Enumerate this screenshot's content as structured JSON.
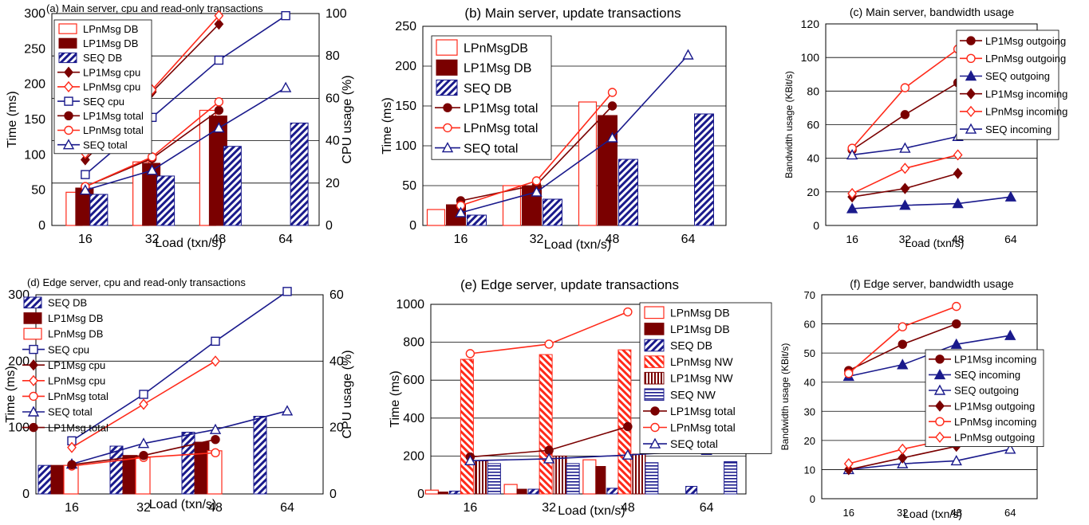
{
  "colors": {
    "red": "#ff2a1a",
    "dark_red": "#7a0000",
    "navy": "#1a1a8c",
    "grid": "#000000",
    "background": "#ffffff"
  },
  "chart_data": [
    {
      "title": "(a) Main server, cpu and read-only transactions",
      "type": "bar",
      "xlabel": "Load (txn/s)",
      "ylabel": "Time (ms)",
      "y2label": "CPU usage (%)",
      "categories": [
        "16",
        "32",
        "48",
        "64"
      ],
      "ylim": [
        0,
        300
      ],
      "yticks": [
        0,
        50,
        100,
        150,
        200,
        250,
        300
      ],
      "y2lim": [
        0,
        100
      ],
      "y2ticks": [
        0,
        20,
        40,
        60,
        80,
        100
      ],
      "grid": true,
      "legend_position": "top-left",
      "legend": [
        "LPnMsg DB",
        "LP1Msg DB",
        "SEQ DB",
        "LP1Msg cpu",
        "LPnMsg cpu",
        "SEQ cpu",
        "LP1Msg total",
        "LPnMsg total",
        "SEQ total"
      ],
      "series": [
        {
          "name": "LPnMsg DB",
          "kind": "bar",
          "style": "red-outline",
          "axis": "left",
          "values": [
            47,
            90,
            163,
            null
          ]
        },
        {
          "name": "LP1Msg DB",
          "kind": "bar",
          "style": "dark-red",
          "axis": "left",
          "values": [
            53,
            88,
            155,
            null
          ]
        },
        {
          "name": "SEQ DB",
          "kind": "bar",
          "style": "navy-hatch",
          "axis": "left",
          "values": [
            44,
            70,
            112,
            145
          ]
        },
        {
          "name": "LP1Msg cpu",
          "kind": "line",
          "marker": "filled-diamond",
          "color": "dark_red",
          "axis": "right",
          "values": [
            31,
            63,
            95,
            null
          ]
        },
        {
          "name": "LPnMsg cpu",
          "kind": "line",
          "marker": "open-diamond",
          "color": "red",
          "axis": "right",
          "values": [
            34,
            64,
            99,
            null
          ]
        },
        {
          "name": "SEQ cpu",
          "kind": "line",
          "marker": "open-square",
          "color": "navy",
          "axis": "right",
          "values": [
            24,
            51,
            78,
            99
          ]
        },
        {
          "name": "LP1Msg total",
          "kind": "line",
          "marker": "filled-circle",
          "color": "dark_red",
          "axis": "left",
          "values": [
            55,
            95,
            163,
            null
          ]
        },
        {
          "name": "LPnMsg total",
          "kind": "line",
          "marker": "open-circle",
          "color": "red",
          "axis": "left",
          "values": [
            55,
            97,
            175,
            null
          ]
        },
        {
          "name": "SEQ total",
          "kind": "line",
          "marker": "open-triangle",
          "color": "navy",
          "axis": "left",
          "values": [
            50,
            78,
            138,
            195
          ]
        }
      ]
    },
    {
      "title": "(b) Main server, update transactions",
      "type": "bar",
      "xlabel": "Load (txn/s)",
      "ylabel": "Time (ms)",
      "categories": [
        "16",
        "32",
        "48",
        "64"
      ],
      "ylim": [
        0,
        250
      ],
      "yticks": [
        0,
        50,
        100,
        150,
        200,
        250
      ],
      "grid": true,
      "legend_position": "top-left",
      "legend": [
        "LPnMsgDB",
        "LP1Msg DB",
        "SEQ DB",
        "LP1Msg total",
        "LPnMsg total",
        "SEQ total"
      ],
      "series": [
        {
          "name": "LPnMsgDB",
          "kind": "bar",
          "style": "red-outline",
          "axis": "left",
          "values": [
            20,
            50,
            155,
            null
          ]
        },
        {
          "name": "LP1Msg DB",
          "kind": "bar",
          "style": "dark-red",
          "axis": "left",
          "values": [
            26,
            50,
            138,
            null
          ]
        },
        {
          "name": "SEQ DB",
          "kind": "bar",
          "style": "navy-hatch",
          "axis": "left",
          "values": [
            13,
            33,
            83,
            140
          ]
        },
        {
          "name": "LP1Msg total",
          "kind": "line",
          "marker": "filled-circle",
          "color": "dark_red",
          "axis": "left",
          "values": [
            31,
            51,
            150,
            null
          ]
        },
        {
          "name": "LPnMsg total",
          "kind": "line",
          "marker": "open-circle",
          "color": "red",
          "axis": "left",
          "values": [
            25,
            56,
            167,
            null
          ]
        },
        {
          "name": "SEQ total",
          "kind": "line",
          "marker": "open-triangle",
          "color": "navy",
          "axis": "left",
          "values": [
            16,
            42,
            110,
            214
          ]
        }
      ]
    },
    {
      "title": "(c) Main server, bandwidth usage",
      "type": "line",
      "xlabel": "Load (txn/s)",
      "ylabel": "Bandwidth usage (KBit/s)",
      "categories": [
        "16",
        "32",
        "48",
        "64"
      ],
      "ylim": [
        0,
        120
      ],
      "yticks": [
        0,
        20,
        40,
        60,
        80,
        100,
        120
      ],
      "grid": true,
      "legend_position": "top-right",
      "legend": [
        "LP1Msg outgoing",
        "LPnMsg outgoing",
        "SEQ outgoing",
        "LP1Msg incoming",
        "LPnMsg incoming",
        "SEQ incoming"
      ],
      "series": [
        {
          "name": "LP1Msg outgoing",
          "kind": "line",
          "marker": "filled-circle",
          "color": "dark_red",
          "axis": "left",
          "values": [
            45,
            66,
            85,
            null
          ]
        },
        {
          "name": "LPnMsg outgoing",
          "kind": "line",
          "marker": "open-circle",
          "color": "red",
          "axis": "left",
          "values": [
            46,
            82,
            105,
            null
          ]
        },
        {
          "name": "SEQ outgoing",
          "kind": "line",
          "marker": "filled-triangle",
          "color": "navy",
          "axis": "left",
          "values": [
            10,
            12,
            13,
            17
          ]
        },
        {
          "name": "LP1Msg incoming",
          "kind": "line",
          "marker": "filled-diamond",
          "color": "dark_red",
          "axis": "left",
          "values": [
            17,
            22,
            31,
            null
          ]
        },
        {
          "name": "LPnMsg incoming",
          "kind": "line",
          "marker": "open-diamond",
          "color": "red",
          "axis": "left",
          "values": [
            19,
            34,
            42,
            null
          ]
        },
        {
          "name": "SEQ incoming",
          "kind": "line",
          "marker": "open-triangle",
          "color": "navy",
          "axis": "left",
          "values": [
            42,
            46,
            53,
            56
          ]
        }
      ]
    },
    {
      "title": "(d) Edge server, cpu and read-only transactions",
      "type": "bar",
      "xlabel": "Load (txn/s)",
      "ylabel": "Time (ms)",
      "y2label": "CPU usage (%)",
      "categories": [
        "16",
        "32",
        "48",
        "64"
      ],
      "ylim": [
        0,
        300
      ],
      "yticks": [
        0,
        100,
        200,
        300
      ],
      "y2lim": [
        0,
        60
      ],
      "y2ticks": [
        0,
        20,
        40,
        60
      ],
      "grid": true,
      "legend_position": "top-left",
      "legend": [
        "SEQ DB",
        "LP1Msg DB",
        "LPnMsg DB",
        "SEQ cpu",
        "LP1Msg cpu",
        "LPnMsg cpu",
        "LPnMsg total",
        "SEQ total",
        "LP1Msg total"
      ],
      "series": [
        {
          "name": "SEQ DB",
          "kind": "bar",
          "style": "navy-hatch",
          "axis": "left",
          "values": [
            43,
            72,
            93,
            117
          ]
        },
        {
          "name": "LP1Msg DB",
          "kind": "bar",
          "style": "dark-red",
          "axis": "left",
          "values": [
            43,
            58,
            78,
            null
          ]
        },
        {
          "name": "LPnMsg DB",
          "kind": "bar",
          "style": "red-outline",
          "axis": "left",
          "values": [
            43,
            55,
            65,
            null
          ]
        },
        {
          "name": "SEQ cpu",
          "kind": "line",
          "marker": "open-square",
          "color": "navy",
          "axis": "right",
          "values": [
            16,
            30,
            46,
            61
          ]
        },
        {
          "name": "LP1Msg cpu",
          "kind": "line",
          "marker": "filled-diamond",
          "color": "dark_red",
          "axis": "right",
          "values": [
            null,
            null,
            null,
            null
          ]
        },
        {
          "name": "LPnMsg cpu",
          "kind": "line",
          "marker": "open-diamond",
          "color": "red",
          "axis": "right",
          "values": [
            14,
            27,
            40,
            null
          ]
        },
        {
          "name": "LPnMsg total",
          "kind": "line",
          "marker": "open-circle",
          "color": "red",
          "axis": "left",
          "values": [
            42,
            55,
            62,
            null
          ]
        },
        {
          "name": "SEQ total",
          "kind": "line",
          "marker": "open-triangle",
          "color": "navy",
          "axis": "left",
          "values": [
            45,
            76,
            97,
            125
          ]
        },
        {
          "name": "LP1Msg total",
          "kind": "line",
          "marker": "filled-circle",
          "color": "dark_red",
          "axis": "left",
          "values": [
            44,
            58,
            82,
            null
          ]
        }
      ]
    },
    {
      "title": "(e) Edge server, update transactions",
      "type": "bar",
      "xlabel": "Load (txn/s)",
      "ylabel": "Time (ms)",
      "categories": [
        "16",
        "32",
        "48",
        "64"
      ],
      "ylim": [
        0,
        1000
      ],
      "yticks": [
        0,
        200,
        400,
        600,
        800,
        1000
      ],
      "grid": true,
      "legend_position": "right",
      "legend": [
        "LPnMsg DB",
        "LP1Msg DB",
        "SEQ DB",
        "LPnMsg NW",
        "LP1Msg NW",
        "SEQ NW",
        "LP1Msg total",
        "LPnMsg total",
        "SEQ total"
      ],
      "series": [
        {
          "name": "LPnMsg DB",
          "kind": "bar",
          "style": "red-outline",
          "axis": "left",
          "values": [
            20,
            50,
            180,
            null
          ]
        },
        {
          "name": "LP1Msg DB",
          "kind": "bar",
          "style": "dark-red",
          "axis": "left",
          "values": [
            10,
            25,
            145,
            null
          ]
        },
        {
          "name": "SEQ DB",
          "kind": "bar",
          "style": "navy-hatch",
          "axis": "left",
          "values": [
            15,
            25,
            30,
            40
          ]
        },
        {
          "name": "LPnMsg NW",
          "kind": "bar",
          "style": "red-hatch",
          "axis": "left",
          "values": [
            710,
            735,
            760,
            null
          ]
        },
        {
          "name": "LP1Msg NW",
          "kind": "bar",
          "style": "dark-red-vstripe",
          "axis": "left",
          "values": [
            175,
            200,
            210,
            null
          ]
        },
        {
          "name": "SEQ NW",
          "kind": "bar",
          "style": "navy-hstripe",
          "axis": "left",
          "values": [
            160,
            160,
            165,
            170
          ]
        },
        {
          "name": "LP1Msg total",
          "kind": "line",
          "marker": "filled-circle",
          "color": "dark_red",
          "axis": "left",
          "values": [
            195,
            230,
            355,
            null
          ]
        },
        {
          "name": "LPnMsg total",
          "kind": "line",
          "marker": "open-circle",
          "color": "red",
          "axis": "left",
          "values": [
            740,
            790,
            960,
            null
          ]
        },
        {
          "name": "SEQ total",
          "kind": "line",
          "marker": "open-triangle",
          "color": "navy",
          "axis": "left",
          "values": [
            175,
            185,
            205,
            230
          ]
        }
      ]
    },
    {
      "title": "(f) Edge server, bandwidth usage",
      "type": "line",
      "xlabel": "Load (txn/s)",
      "ylabel": "Bandwidth usage (KBit/s)",
      "categories": [
        "16",
        "32",
        "48",
        "64"
      ],
      "ylim": [
        0,
        70
      ],
      "yticks": [
        0,
        10,
        20,
        30,
        40,
        50,
        60,
        70
      ],
      "grid": true,
      "legend_position": "right",
      "legend": [
        "LP1Msg incoming",
        "SEQ incoming",
        "SEQ outgoing",
        "LP1Msg outgoing",
        "LPnMsg incoming",
        "LPnMsg outgoing"
      ],
      "series": [
        {
          "name": "LP1Msg incoming",
          "kind": "line",
          "marker": "filled-circle",
          "color": "dark_red",
          "axis": "left",
          "values": [
            44,
            53,
            60,
            null
          ]
        },
        {
          "name": "SEQ incoming",
          "kind": "line",
          "marker": "filled-triangle",
          "color": "navy",
          "axis": "left",
          "values": [
            42,
            46,
            53,
            56
          ]
        },
        {
          "name": "SEQ outgoing",
          "kind": "line",
          "marker": "open-triangle",
          "color": "navy",
          "axis": "left",
          "values": [
            10,
            12,
            13,
            17
          ]
        },
        {
          "name": "LP1Msg outgoing",
          "kind": "line",
          "marker": "filled-diamond",
          "color": "dark_red",
          "axis": "left",
          "values": [
            10,
            14,
            18,
            null
          ]
        },
        {
          "name": "LPnMsg incoming",
          "kind": "line",
          "marker": "open-circle",
          "color": "red",
          "axis": "left",
          "values": [
            43,
            59,
            66,
            null
          ]
        },
        {
          "name": "LPnMsg outgoing",
          "kind": "line",
          "marker": "open-diamond",
          "color": "red",
          "axis": "left",
          "values": [
            12,
            17,
            21,
            null
          ]
        }
      ]
    }
  ]
}
